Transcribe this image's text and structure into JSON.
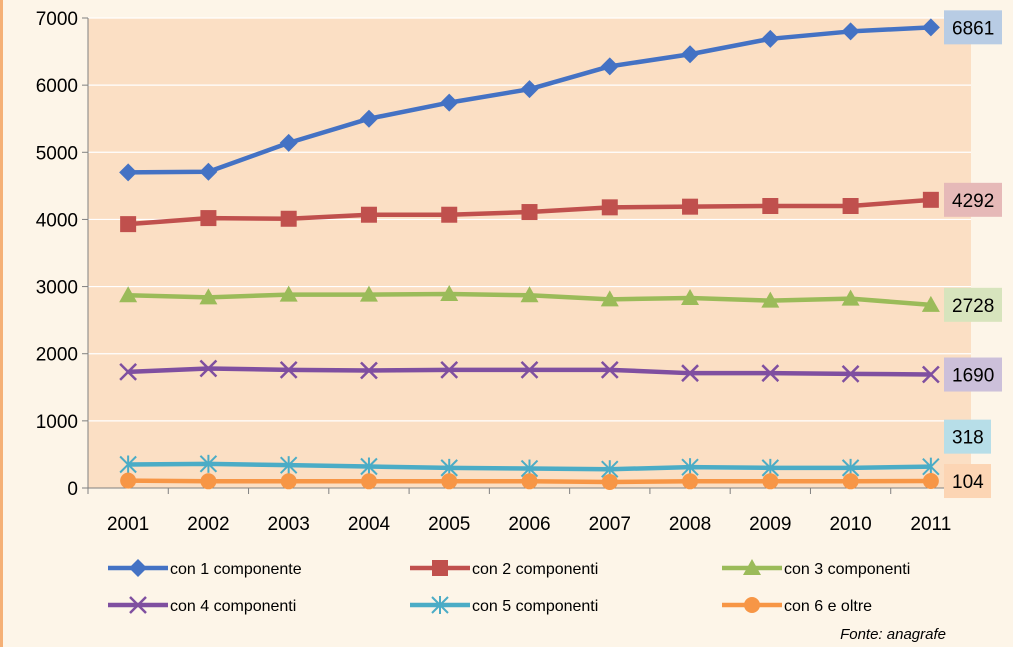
{
  "chart_data": {
    "type": "line",
    "x": [
      "2001",
      "2002",
      "2003",
      "2004",
      "2005",
      "2006",
      "2007",
      "2008",
      "2009",
      "2010",
      "2011"
    ],
    "ylim": [
      0,
      7000
    ],
    "yticks": [
      "0",
      "1000",
      "2000",
      "3000",
      "4000",
      "5000",
      "6000",
      "7000"
    ],
    "grid": true,
    "legend_position": "bottom",
    "series": [
      {
        "name": "con 1 componente",
        "color": "#4472c4",
        "marker": "diamond",
        "values": [
          4700,
          4710,
          5140,
          5500,
          5740,
          5940,
          6280,
          6460,
          6690,
          6800,
          6861
        ],
        "end_label": "6861",
        "label_bg": "#b8cce4"
      },
      {
        "name": "con 2 componenti",
        "color": "#c0504d",
        "marker": "square",
        "values": [
          3930,
          4020,
          4010,
          4070,
          4070,
          4110,
          4180,
          4190,
          4200,
          4200,
          4292
        ],
        "end_label": "4292",
        "label_bg": "#e6b9b8"
      },
      {
        "name": "con 3 componenti",
        "color": "#9bbb59",
        "marker": "triangle",
        "values": [
          2870,
          2840,
          2880,
          2880,
          2890,
          2870,
          2810,
          2830,
          2790,
          2820,
          2728
        ],
        "end_label": "2728",
        "label_bg": "#d7e4bd"
      },
      {
        "name": "con 4 componenti",
        "color": "#7f4fa0",
        "marker": "x",
        "values": [
          1730,
          1780,
          1760,
          1750,
          1760,
          1760,
          1760,
          1710,
          1710,
          1700,
          1690
        ],
        "end_label": "1690",
        "label_bg": "#ccc0da"
      },
      {
        "name": "con 5 componenti",
        "color": "#4bacc6",
        "marker": "star",
        "values": [
          350,
          360,
          340,
          320,
          300,
          290,
          280,
          310,
          300,
          300,
          318
        ],
        "end_label": "318",
        "label_bg": "#b7dee8"
      },
      {
        "name": "con 6 e oltre",
        "color": "#f79646",
        "marker": "circle",
        "values": [
          110,
          100,
          100,
          100,
          100,
          100,
          90,
          100,
          100,
          100,
          104
        ],
        "end_label": "104",
        "label_bg": "#fcd5b4"
      }
    ],
    "source": "Fonte: anagrafe"
  }
}
